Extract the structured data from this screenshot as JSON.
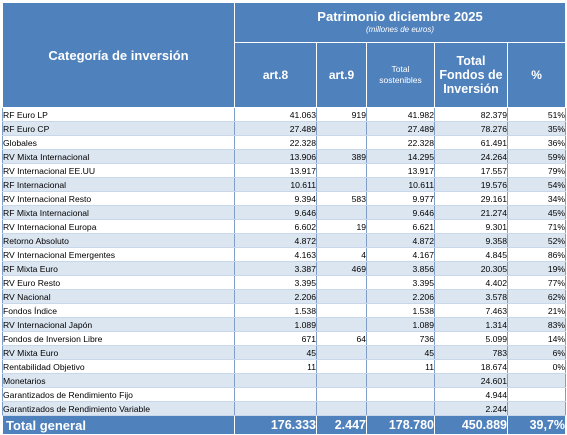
{
  "header": {
    "category_label": "Categoría de inversión",
    "title": "Patrimonio diciembre 2025",
    "subtitle": "(millones de euros)",
    "col_art8": "art.8",
    "col_art9": "art.9",
    "col_total_sost_line1": "Total",
    "col_total_sost_line2": "sostenibles",
    "col_total_fondos_line1": "Total",
    "col_total_fondos_line2": "Fondos de",
    "col_total_fondos_line3": "Inversión",
    "col_pct": "%"
  },
  "rows": [
    {
      "name": "RF Euro LP",
      "art8": "41.063",
      "art9": "919",
      "total_sost": "41.982",
      "total_fondos": "82.379",
      "pct": "51%"
    },
    {
      "name": "RF Euro CP",
      "art8": "27.489",
      "art9": "",
      "total_sost": "27.489",
      "total_fondos": "78.276",
      "pct": "35%"
    },
    {
      "name": "Globales",
      "art8": "22.328",
      "art9": "",
      "total_sost": "22.328",
      "total_fondos": "61.491",
      "pct": "36%"
    },
    {
      "name": "RV Mixta Internacional",
      "art8": "13.906",
      "art9": "389",
      "total_sost": "14.295",
      "total_fondos": "24.264",
      "pct": "59%"
    },
    {
      "name": "RV Internacional EE.UU",
      "art8": "13.917",
      "art9": "",
      "total_sost": "13.917",
      "total_fondos": "17.557",
      "pct": "79%"
    },
    {
      "name": "RF Internacional",
      "art8": "10.611",
      "art9": "",
      "total_sost": "10.611",
      "total_fondos": "19.576",
      "pct": "54%"
    },
    {
      "name": "RV Internacional Resto",
      "art8": "9.394",
      "art9": "583",
      "total_sost": "9.977",
      "total_fondos": "29.161",
      "pct": "34%"
    },
    {
      "name": "RF Mixta Internacional",
      "art8": "9.646",
      "art9": "",
      "total_sost": "9.646",
      "total_fondos": "21.274",
      "pct": "45%"
    },
    {
      "name": "RV Internacional Europa",
      "art8": "6.602",
      "art9": "19",
      "total_sost": "6.621",
      "total_fondos": "9.301",
      "pct": "71%"
    },
    {
      "name": "Retorno Absoluto",
      "art8": "4.872",
      "art9": "",
      "total_sost": "4.872",
      "total_fondos": "9.358",
      "pct": "52%"
    },
    {
      "name": "RV Internacional Emergentes",
      "art8": "4.163",
      "art9": "4",
      "total_sost": "4.167",
      "total_fondos": "4.845",
      "pct": "86%"
    },
    {
      "name": "RF Mixta Euro",
      "art8": "3.387",
      "art9": "469",
      "total_sost": "3.856",
      "total_fondos": "20.305",
      "pct": "19%"
    },
    {
      "name": "RV Euro Resto",
      "art8": "3.395",
      "art9": "",
      "total_sost": "3.395",
      "total_fondos": "4.402",
      "pct": "77%"
    },
    {
      "name": "RV Nacional",
      "art8": "2.206",
      "art9": "",
      "total_sost": "2.206",
      "total_fondos": "3.578",
      "pct": "62%"
    },
    {
      "name": "Fondos Índice",
      "art8": "1.538",
      "art9": "",
      "total_sost": "1.538",
      "total_fondos": "7.463",
      "pct": "21%"
    },
    {
      "name": "RV Internacional Japón",
      "art8": "1.089",
      "art9": "",
      "total_sost": "1.089",
      "total_fondos": "1.314",
      "pct": "83%"
    },
    {
      "name": "Fondos de Inversion Libre",
      "art8": "671",
      "art9": "64",
      "total_sost": "736",
      "total_fondos": "5.099",
      "pct": "14%"
    },
    {
      "name": "RV Mixta Euro",
      "art8": "45",
      "art9": "",
      "total_sost": "45",
      "total_fondos": "783",
      "pct": "6%"
    },
    {
      "name": "Rentabilidad Objetivo",
      "art8": "11",
      "art9": "",
      "total_sost": "11",
      "total_fondos": "18.674",
      "pct": "0%"
    },
    {
      "name": "Monetarios",
      "art8": "",
      "art9": "",
      "total_sost": "",
      "total_fondos": "24.601",
      "pct": ""
    },
    {
      "name": "Garantizados de Rendimiento Fijo",
      "art8": "",
      "art9": "",
      "total_sost": "",
      "total_fondos": "4.944",
      "pct": ""
    },
    {
      "name": "Garantizados de Rendimiento Variable",
      "art8": "",
      "art9": "",
      "total_sost": "",
      "total_fondos": "2.244",
      "pct": ""
    }
  ],
  "total": {
    "name": "Total general",
    "art8": "176.333",
    "art9": "2.447",
    "total_sost": "178.780",
    "total_fondos": "450.889",
    "pct": "39,7%"
  }
}
